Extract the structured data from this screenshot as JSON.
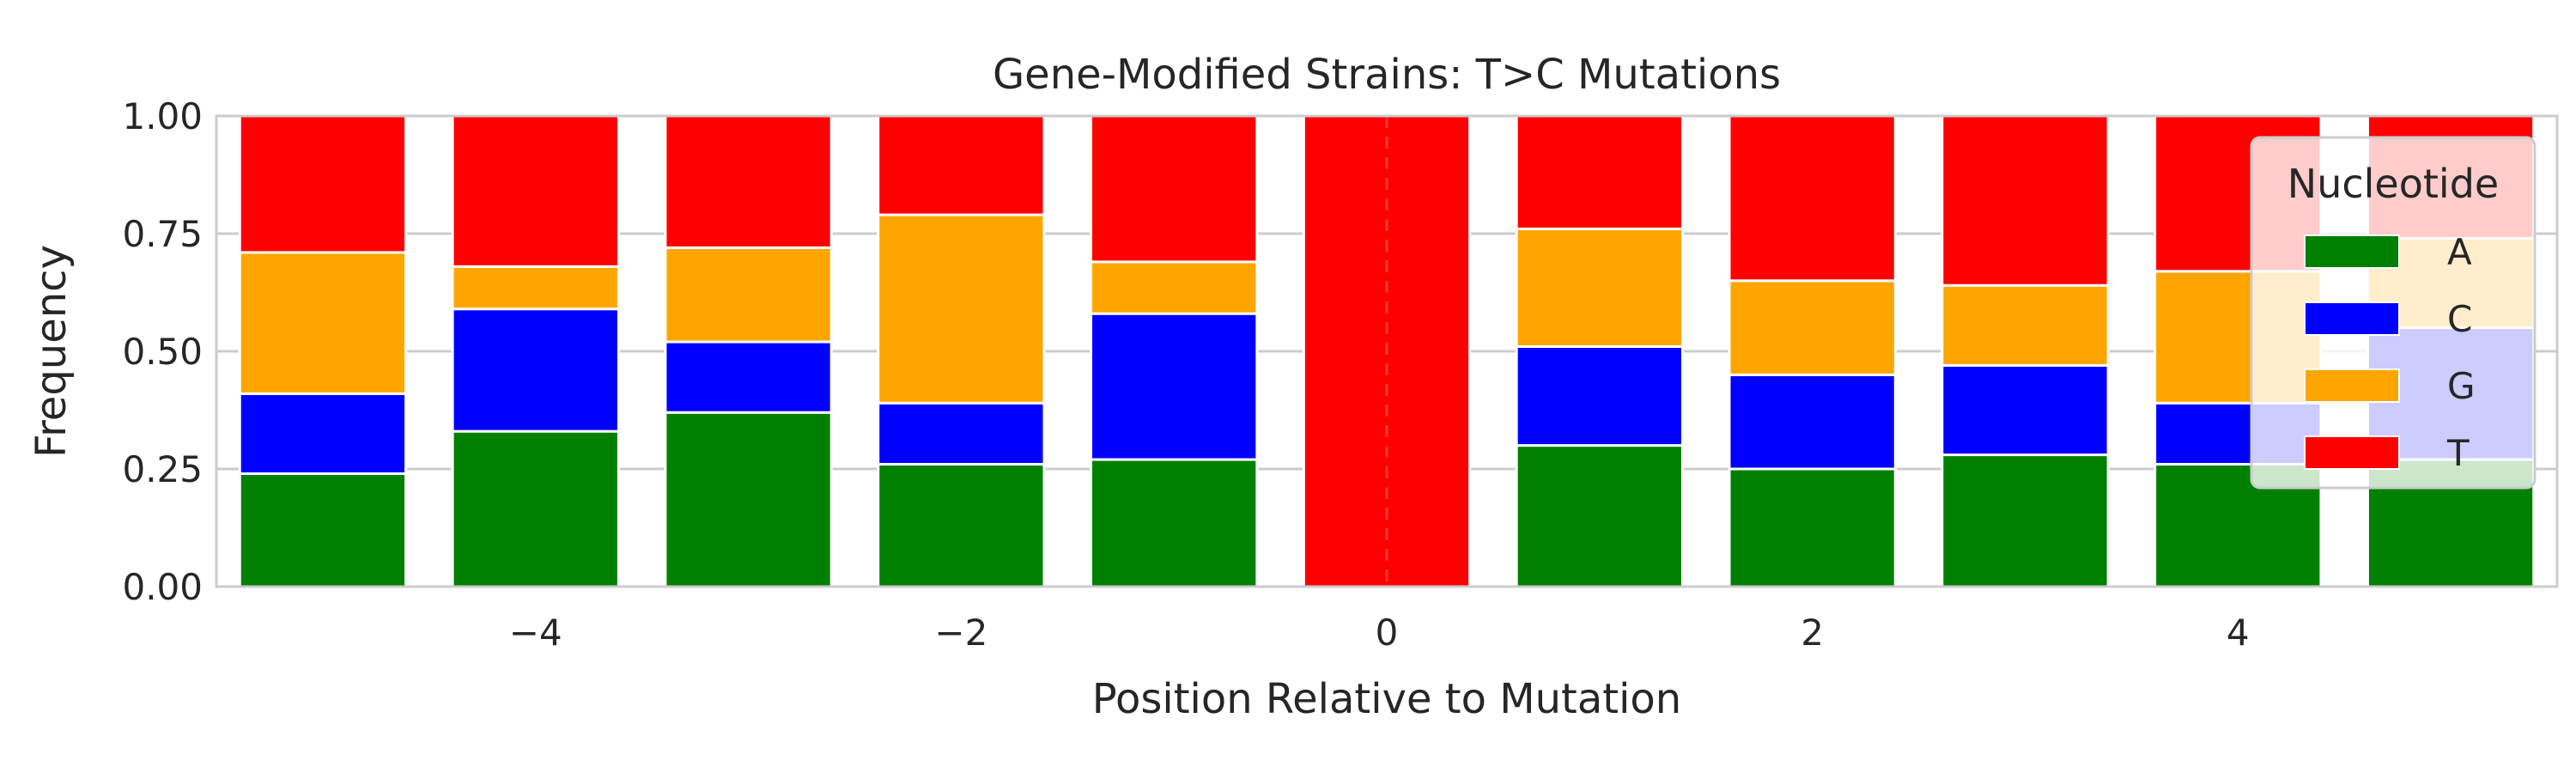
{
  "chart_data": {
    "type": "bar",
    "stacked": true,
    "title": "Gene-Modified Strains: T>C Mutations",
    "xlabel": "Position Relative to Mutation",
    "ylabel": "Frequency",
    "ylim": [
      0,
      1
    ],
    "xlim": [
      -5.5,
      5.5
    ],
    "x": [
      -5,
      -4,
      -3,
      -2,
      -1,
      0,
      1,
      2,
      3,
      4,
      5
    ],
    "x_ticks": [
      -4,
      -2,
      0,
      2,
      4
    ],
    "x_tick_labels": [
      "−4",
      "−2",
      "0",
      "2",
      "4"
    ],
    "y_ticks": [
      0,
      0.25,
      0.5,
      0.75,
      1
    ],
    "y_tick_labels": [
      "0.00",
      "0.25",
      "0.50",
      "0.75",
      "1.00"
    ],
    "grid": "horizontal",
    "legend": {
      "title": "Nucleotide",
      "placement": "top-right"
    },
    "series": [
      {
        "name": "A",
        "color": "#008000",
        "values": [
          0.24,
          0.33,
          0.37,
          0.26,
          0.27,
          0.0,
          0.3,
          0.25,
          0.28,
          0.26,
          0.27
        ]
      },
      {
        "name": "C",
        "color": "#0000ff",
        "values": [
          0.17,
          0.26,
          0.15,
          0.13,
          0.31,
          0.0,
          0.21,
          0.2,
          0.19,
          0.13,
          0.28
        ]
      },
      {
        "name": "G",
        "color": "#ffa500",
        "values": [
          0.3,
          0.09,
          0.2,
          0.4,
          0.11,
          0.0,
          0.25,
          0.2,
          0.17,
          0.28,
          0.19
        ]
      },
      {
        "name": "T",
        "color": "#ff0000",
        "values": [
          0.29,
          0.32,
          0.28,
          0.21,
          0.31,
          1.0,
          0.24,
          0.35,
          0.36,
          0.33,
          0.26
        ]
      }
    ]
  }
}
